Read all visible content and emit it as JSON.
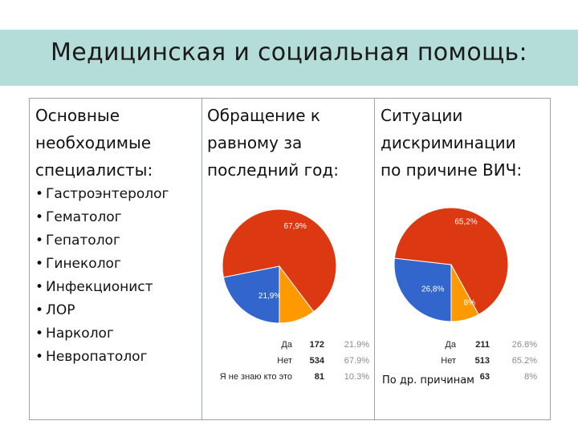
{
  "slide": {
    "title": "Медицинская и социальная помощь:"
  },
  "specialists": {
    "heading": "Основные\nнеобходимые\nспециалисты:",
    "items": [
      "Гастроэнтеролог",
      "Гематолог",
      "Гепатолог",
      "Гинеколог",
      "Инфекционист",
      "ЛОР",
      "Нарколог",
      "Невропатолог"
    ]
  },
  "appeal": {
    "heading": "Обращение к\nравному за\nпоследний год:"
  },
  "discrimination": {
    "heading": "Ситуации\nдискриминации\nпо причине ВИЧ:",
    "overlay_note": "По др. причинам"
  },
  "chart_data": [
    {
      "type": "pie",
      "title": "Обращение к равному за последний год:",
      "slices": [
        {
          "label": "Да",
          "count": 172,
          "percent": 21.9,
          "pie_label": "21,9%",
          "table_percent": "21.9%",
          "color": "#3366cc"
        },
        {
          "label": "Нет",
          "count": 534,
          "percent": 67.9,
          "pie_label": "67,9%",
          "table_percent": "67.9%",
          "color": "#dc3912"
        },
        {
          "label": "Я не знаю кто это",
          "count": 81,
          "percent": 10.3,
          "pie_label": "",
          "table_percent": "10.3%",
          "color": "#ff9900"
        }
      ]
    },
    {
      "type": "pie",
      "title": "Ситуации дискриминации по причине ВИЧ:",
      "slices": [
        {
          "label": "Да",
          "count": 211,
          "percent": 26.8,
          "pie_label": "26,8%",
          "table_percent": "26.8%",
          "color": "#3366cc"
        },
        {
          "label": "Нет",
          "count": 513,
          "percent": 65.2,
          "pie_label": "65,2%",
          "table_percent": "65.2%",
          "color": "#dc3912"
        },
        {
          "label": "",
          "count": 63,
          "percent": 8,
          "pie_label": "8%",
          "table_percent": "8%",
          "color": "#ff9900"
        }
      ]
    }
  ]
}
